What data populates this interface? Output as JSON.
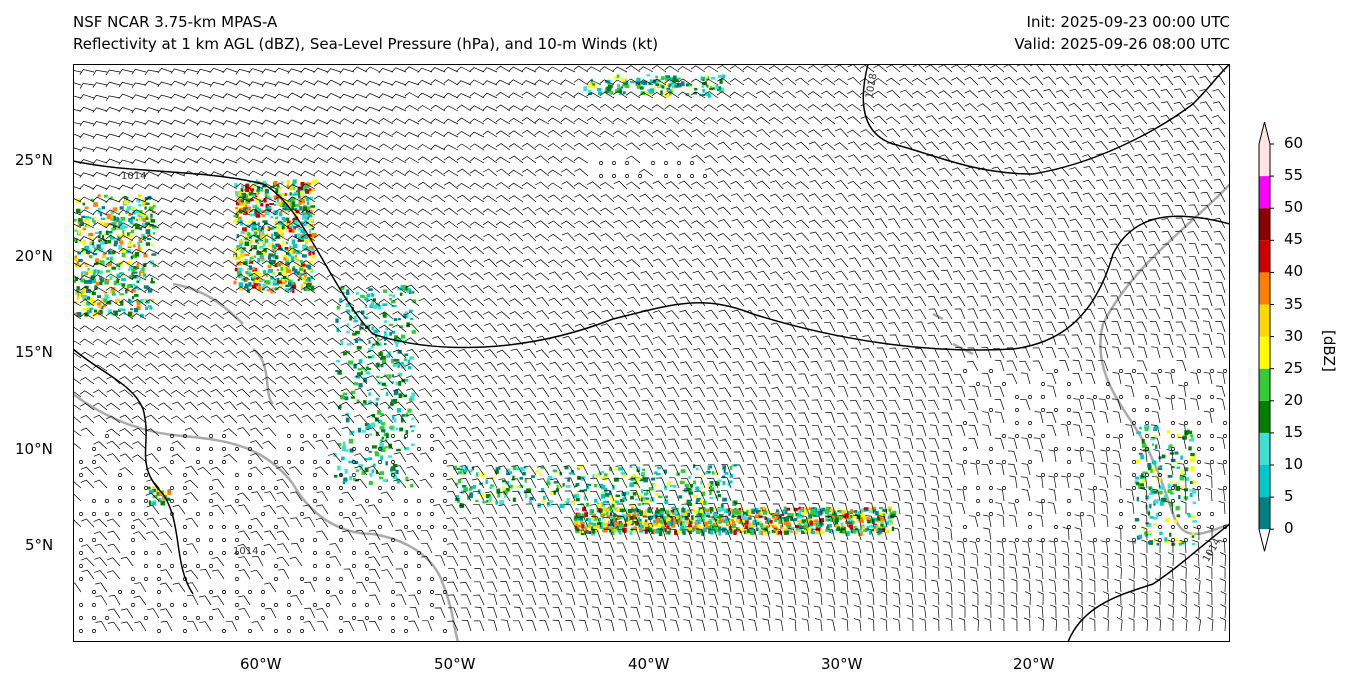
{
  "header": {
    "model": "NSF NCAR 3.75-km MPAS-A",
    "fields": "Reflectivity at 1 km AGL (dBZ), Sea-Level Pressure (hPa), and 10-m Winds (kt)",
    "init": "Init: 2025-09-23 00:00 UTC",
    "valid": "Valid: 2025-09-26 08:00 UTC"
  },
  "map": {
    "lon_range": [
      -70,
      -10
    ],
    "lat_range": [
      0,
      30
    ],
    "lat_ticks": [
      "25°N",
      "20°N",
      "15°N",
      "10°N",
      "5°N"
    ],
    "lon_ticks": [
      "60°W",
      "50°W",
      "40°W",
      "30°W",
      "20°W"
    ],
    "isobar_labels": [
      "1014",
      "1018",
      "1014",
      "1014",
      "1014",
      "1014"
    ]
  },
  "colorbar": {
    "unit_label": "[dBZ]",
    "levels": [
      "0",
      "5",
      "10",
      "15",
      "20",
      "25",
      "30",
      "35",
      "40",
      "45",
      "50",
      "55",
      "60"
    ],
    "colors": [
      "#008080",
      "#00c8c8",
      "#40e0d0",
      "#008000",
      "#32cd32",
      "#ffff00",
      "#ffd700",
      "#ff8000",
      "#cc0000",
      "#8b0000",
      "#ff00ff",
      "#ffe4e1"
    ]
  }
}
